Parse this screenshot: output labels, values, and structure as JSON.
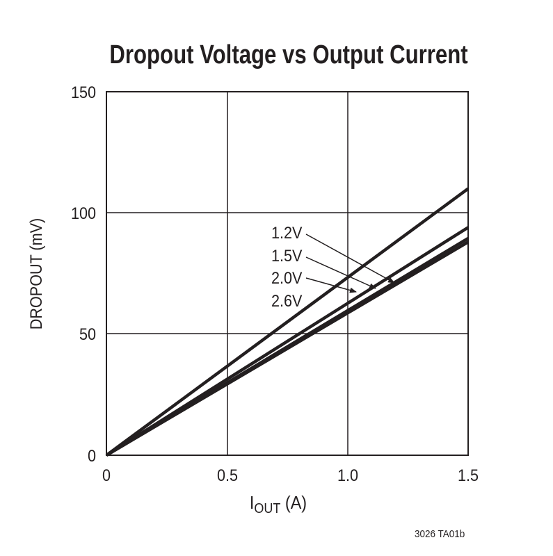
{
  "chart_data": {
    "type": "line",
    "title": "Dropout Voltage vs Output Current",
    "xlabel": "IOUT (A)",
    "xlabel_main": "I",
    "xlabel_sub": "OUT",
    "xlabel_unit": " (A)",
    "ylabel": "DROPOUT (mV)",
    "xlim": [
      0,
      1.5
    ],
    "ylim": [
      0,
      150
    ],
    "xticks": [
      "0",
      "0.5",
      "1.0",
      "1.5"
    ],
    "yticks": [
      "0",
      "50",
      "100",
      "150"
    ],
    "grid": true,
    "series": [
      {
        "name": "1.2V",
        "x": [
          0,
          1.5
        ],
        "values": [
          0,
          110
        ]
      },
      {
        "name": "1.5V",
        "x": [
          0,
          1.5
        ],
        "values": [
          0,
          94
        ]
      },
      {
        "name": "2.0V",
        "x": [
          0,
          1.5
        ],
        "values": [
          0,
          89.5
        ]
      },
      {
        "name": "2.6V",
        "x": [
          0,
          1.5
        ],
        "values": [
          0,
          88
        ]
      }
    ],
    "annotations": [
      "1.2V",
      "1.5V",
      "2.0V",
      "2.6V"
    ],
    "footnote": "3026 TA01b"
  }
}
